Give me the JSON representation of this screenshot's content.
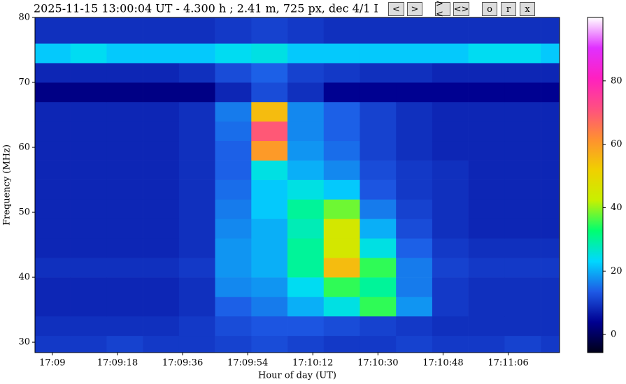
{
  "chart_data": {
    "type": "heatmap",
    "title": "2025-11-15 13:00:04 UT - 4.300 h ;    2.41 m, 725 px, dec 4/1 I",
    "x_label": "Hour of day (UT)",
    "y_label": "Frequency (MHz)",
    "buttons": [
      "<",
      ">",
      "><",
      "<>",
      "o",
      "r",
      "x"
    ],
    "xlim": [
      -4.8,
      140.2
    ],
    "xticks": [
      {
        "value": 0,
        "label": "17:09"
      },
      {
        "value": 18,
        "label": "17:09:18"
      },
      {
        "value": 36,
        "label": "17:09:36"
      },
      {
        "value": 54,
        "label": "17:09:54"
      },
      {
        "value": 72,
        "label": "17:10:12"
      },
      {
        "value": 90,
        "label": "17:10:30"
      },
      {
        "value": 108,
        "label": "17:10:48"
      },
      {
        "value": 126,
        "label": "17:11:06"
      }
    ],
    "ylim": [
      28.4,
      80
    ],
    "yticks": [
      30,
      40,
      50,
      60,
      70,
      80
    ],
    "clim": [
      -5.7,
      100
    ],
    "cticks": [
      0,
      20,
      40,
      60,
      80
    ],
    "colormap": [
      "#000018",
      "#000090",
      "#1e5ae6",
      "#00d8ff",
      "#00ff70",
      "#c8f000",
      "#f0d000",
      "#ff9030",
      "#ff5080",
      "#ff20c0",
      "#e030ff",
      "#ffffff"
    ],
    "x_edges": [
      -4.8,
      5,
      15,
      25,
      35,
      45,
      55,
      65,
      75,
      85,
      95,
      105,
      115,
      125,
      135,
      140.2
    ],
    "y_edges": [
      28.4,
      31,
      34,
      37,
      40,
      43,
      46,
      49,
      52,
      55,
      58,
      61,
      64,
      67,
      70,
      73,
      76,
      80
    ],
    "values": [
      [
        10,
        10,
        11,
        10,
        10,
        11,
        12,
        11,
        10,
        10,
        11,
        10,
        10,
        11,
        10
      ],
      [
        9,
        9,
        9,
        9,
        10,
        12,
        13,
        13,
        12,
        11,
        10,
        9,
        9,
        9,
        9
      ],
      [
        8,
        8,
        8,
        8,
        9,
        14,
        16,
        20,
        25,
        35,
        18,
        10,
        9,
        9,
        9
      ],
      [
        8,
        8,
        8,
        8,
        9,
        17,
        18,
        24,
        35,
        30,
        16,
        10,
        9,
        9,
        9
      ],
      [
        9,
        9,
        9,
        9,
        10,
        18,
        20,
        30,
        55,
        35,
        16,
        11,
        10,
        10,
        10
      ],
      [
        8,
        8,
        8,
        8,
        9,
        18,
        20,
        30,
        45,
        25,
        14,
        10,
        9,
        9,
        9
      ],
      [
        8,
        8,
        8,
        8,
        9,
        17,
        20,
        28,
        45,
        20,
        12,
        9,
        8,
        8,
        8
      ],
      [
        8,
        8,
        8,
        8,
        9,
        16,
        22,
        30,
        38,
        16,
        11,
        9,
        8,
        8,
        8
      ],
      [
        8,
        8,
        8,
        8,
        9,
        15,
        22,
        25,
        22,
        13,
        10,
        9,
        8,
        8,
        8
      ],
      [
        8,
        8,
        8,
        8,
        9,
        14,
        25,
        20,
        17,
        12,
        10,
        9,
        8,
        8,
        8
      ],
      [
        8,
        8,
        8,
        8,
        9,
        14,
        60,
        18,
        15,
        11,
        9,
        8,
        8,
        8,
        8
      ],
      [
        8,
        8,
        8,
        8,
        9,
        15,
        70,
        17,
        14,
        11,
        9,
        8,
        8,
        8,
        8
      ],
      [
        8,
        8,
        8,
        8,
        9,
        16,
        55,
        17,
        14,
        11,
        9,
        8,
        8,
        8,
        8
      ],
      [
        3,
        3,
        3,
        3,
        3,
        8,
        12,
        9,
        4,
        4,
        4,
        4,
        4,
        4,
        4
      ],
      [
        8,
        8,
        8,
        8,
        9,
        12,
        14,
        11,
        10,
        9,
        9,
        8,
        8,
        8,
        8
      ],
      [
        22,
        24,
        22,
        22,
        22,
        24,
        25,
        22,
        22,
        22,
        22,
        22,
        24,
        24,
        22
      ],
      [
        9,
        9,
        9,
        9,
        9,
        10,
        11,
        10,
        9,
        9,
        9,
        9,
        9,
        9,
        9
      ]
    ]
  }
}
